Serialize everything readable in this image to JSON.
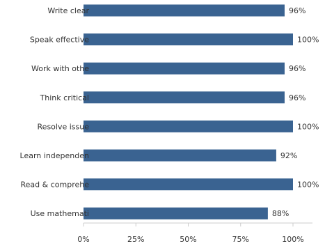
{
  "chart_data": {
    "type": "bar",
    "orientation": "horizontal",
    "categories": [
      "Write clear",
      "Speak effective",
      "Work with othe",
      "Think critical",
      "Resolve issue",
      "Learn independen",
      "Read & comprehe",
      "Use mathemati"
    ],
    "values": [
      96,
      100,
      96,
      96,
      100,
      92,
      100,
      88
    ],
    "value_labels": [
      "96%",
      "100%",
      "96%",
      "96%",
      "100%",
      "92%",
      "100%",
      "88%"
    ],
    "xlim": [
      0,
      100
    ],
    "x_ticks": [
      "0%",
      "25%",
      "50%",
      "75%",
      "100%"
    ],
    "bar_color": "#3a6391",
    "grid": false,
    "title": "",
    "xlabel": "",
    "ylabel": ""
  }
}
